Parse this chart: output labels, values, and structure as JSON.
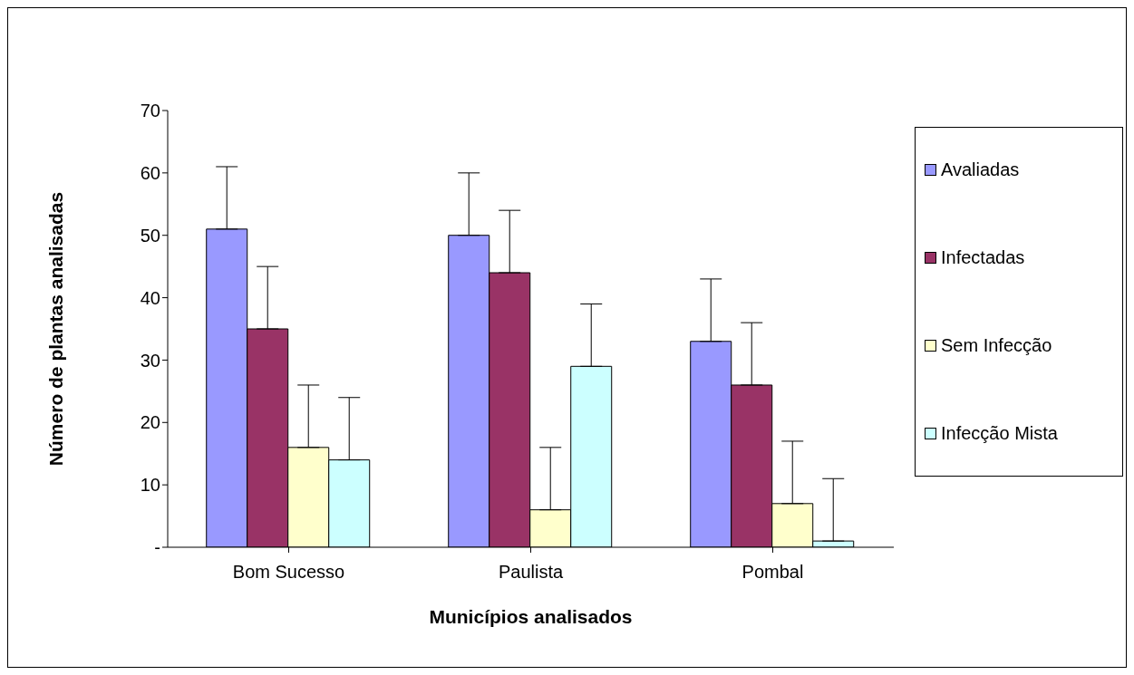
{
  "chart_data": {
    "type": "bar",
    "categories": [
      "Bom Sucesso",
      "Paulista",
      "Pombal"
    ],
    "series": [
      {
        "name": "Avaliadas",
        "color": "#9999ff",
        "values": [
          51,
          50,
          33
        ],
        "errors": [
          [
            51,
            61
          ],
          [
            50,
            60
          ],
          [
            33,
            43
          ]
        ]
      },
      {
        "name": "Infectadas",
        "color": "#993366",
        "values": [
          35,
          44,
          26
        ],
        "errors": [
          [
            35,
            45
          ],
          [
            44,
            54
          ],
          [
            26,
            36
          ]
        ]
      },
      {
        "name": "Sem Infecção",
        "color": "#ffffcc",
        "values": [
          16,
          6,
          7
        ],
        "errors": [
          [
            16,
            26
          ],
          [
            6,
            16
          ],
          [
            7,
            17
          ]
        ]
      },
      {
        "name": "Infecção Mista",
        "color": "#ccffff",
        "values": [
          14,
          29,
          1
        ],
        "errors": [
          [
            14,
            24
          ],
          [
            29,
            39
          ],
          [
            1,
            11
          ]
        ]
      }
    ],
    "xlabel": "Municípios analisados",
    "ylabel": "Número de plantas  analisadas",
    "ylim": [
      0,
      70
    ],
    "yticks": [
      {
        "value": 0,
        "label": "-"
      },
      10,
      20,
      30,
      40,
      50,
      60,
      70
    ],
    "grid": false,
    "legend": "right"
  }
}
